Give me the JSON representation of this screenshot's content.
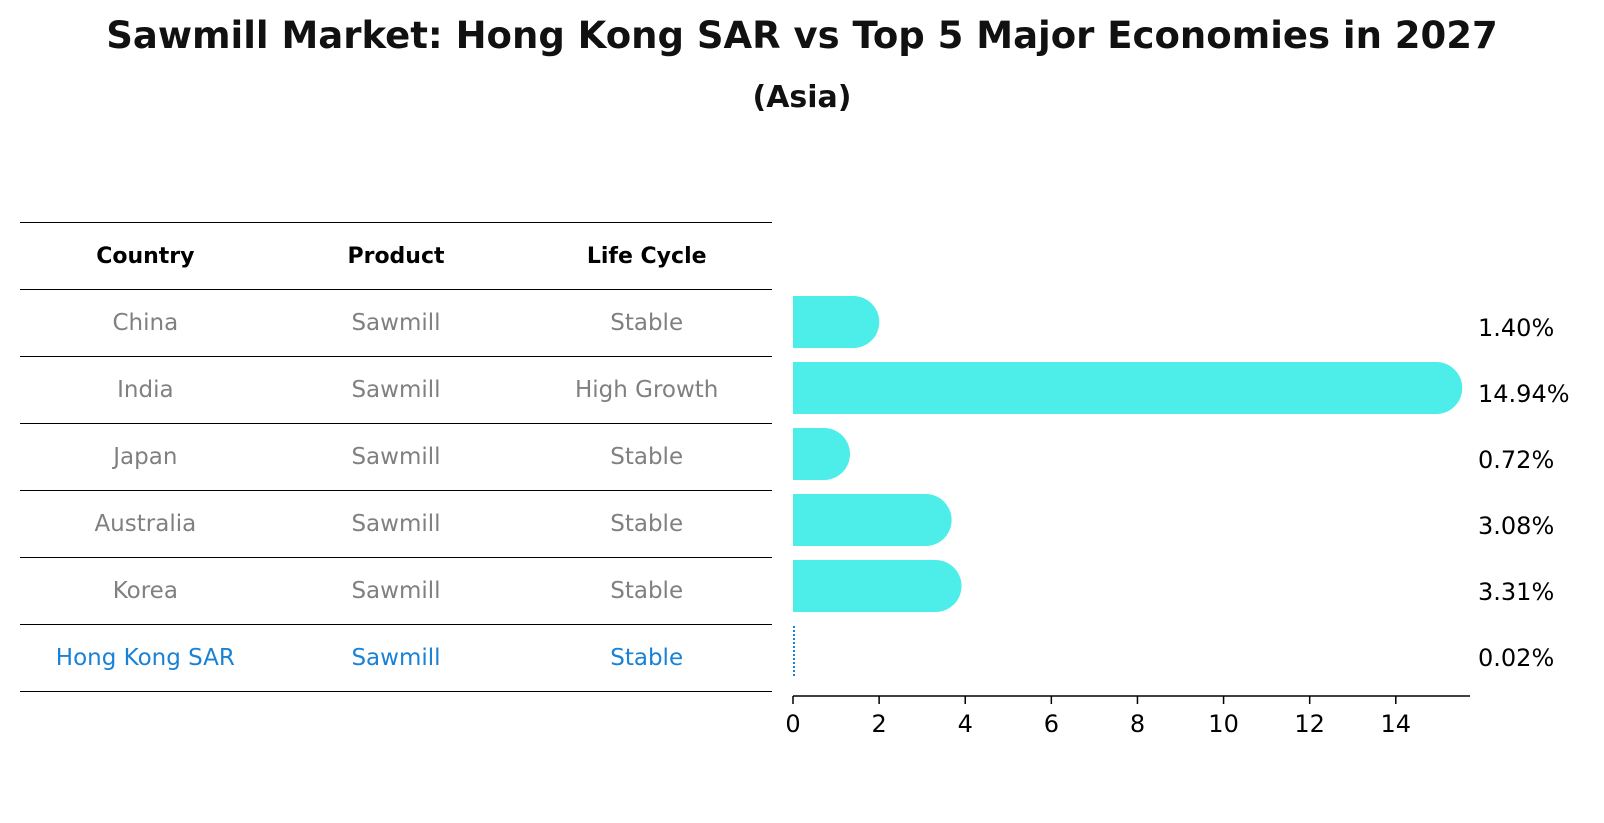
{
  "title": "Sawmill Market: Hong Kong SAR vs Top 5 Major Economies in 2027",
  "subtitle": "(Asia)",
  "table": {
    "headers": [
      "Country",
      "Product",
      "Life Cycle"
    ],
    "rows": [
      [
        "China",
        "Sawmill",
        "Stable"
      ],
      [
        "India",
        "Sawmill",
        "High Growth"
      ],
      [
        "Japan",
        "Sawmill",
        "Stable"
      ],
      [
        "Australia",
        "Sawmill",
        "Stable"
      ],
      [
        "Korea",
        "Sawmill",
        "Stable"
      ],
      [
        "Hong Kong SAR",
        "Sawmill",
        "Stable"
      ]
    ]
  },
  "chart_data": {
    "type": "bar",
    "orientation": "horizontal",
    "categories": [
      "China",
      "India",
      "Japan",
      "Australia",
      "Korea",
      "Hong Kong SAR"
    ],
    "values": [
      1.4,
      14.94,
      0.72,
      3.08,
      3.31,
      0.02
    ],
    "value_labels": [
      "1.40%",
      "14.94%",
      "0.72%",
      "3.08%",
      "3.31%",
      "0.02%"
    ],
    "xticks": [
      0,
      2,
      4,
      6,
      8,
      10,
      12,
      14
    ],
    "xlim": [
      0,
      15.7
    ],
    "bar_color": "#4deeea",
    "highlight_color": "#1a82d6",
    "highlight_category": "Hong Kong SAR",
    "grid": false
  }
}
